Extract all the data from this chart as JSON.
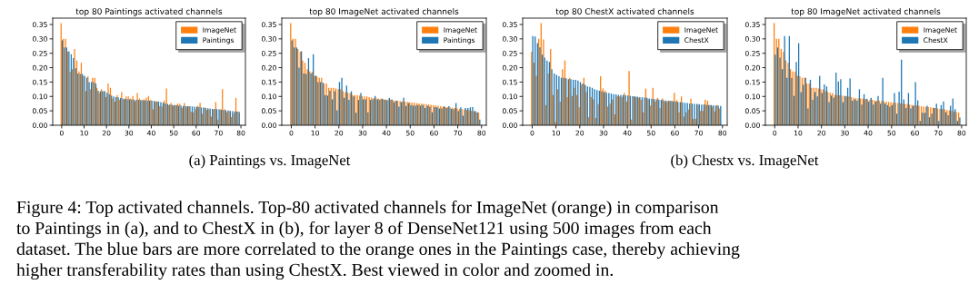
{
  "chart_data": [
    {
      "type": "bar",
      "title": "top 80 Paintings activated channels",
      "x": [
        0,
        1,
        2,
        3,
        4,
        5,
        6,
        7,
        8,
        9,
        10,
        11,
        12,
        13,
        14,
        15,
        16,
        17,
        18,
        19,
        20,
        21,
        22,
        23,
        24,
        25,
        26,
        27,
        28,
        29,
        30,
        31,
        32,
        33,
        34,
        35,
        36,
        37,
        38,
        39,
        40,
        41,
        42,
        43,
        44,
        45,
        46,
        47,
        48,
        49,
        50,
        51,
        52,
        53,
        54,
        55,
        56,
        57,
        58,
        59,
        60,
        61,
        62,
        63,
        64,
        65,
        66,
        67,
        68,
        69,
        70,
        71,
        72,
        73,
        74,
        75,
        76,
        77,
        78,
        79
      ],
      "series": [
        {
          "name": "ImageNet",
          "color": "#ff7f0e",
          "values": [
            0.355,
            0.3,
            0.3,
            0.255,
            0.185,
            0.195,
            0.265,
            0.225,
            0.187,
            0.217,
            0.17,
            0.118,
            0.17,
            0.125,
            0.165,
            0.165,
            0.13,
            0.112,
            0.125,
            0.118,
            0.098,
            0.145,
            0.13,
            0.093,
            0.082,
            0.105,
            0.088,
            0.115,
            0.09,
            0.1,
            0.1,
            0.093,
            0.102,
            0.083,
            0.112,
            0.093,
            0.088,
            0.09,
            0.096,
            0.102,
            0.088,
            0.055,
            0.083,
            0.083,
            0.066,
            0.065,
            0.086,
            0.128,
            0.07,
            0.077,
            0.068,
            0.07,
            0.075,
            0.075,
            0.06,
            0.077,
            0.065,
            0.066,
            0.047,
            0.045,
            0.055,
            0.068,
            0.078,
            0.04,
            0.062,
            0.053,
            0.055,
            0.03,
            0.055,
            0.08,
            0.02,
            0.055,
            0.125,
            0.055,
            0.045,
            0.05,
            0.028,
            0.04,
            0.095,
            0.048
          ]
        },
        {
          "name": "Paintings",
          "color": "#1f77b4",
          "values": [
            0.295,
            0.27,
            0.27,
            0.257,
            0.247,
            0.233,
            0.198,
            0.18,
            0.178,
            0.178,
            0.172,
            0.165,
            0.15,
            0.15,
            0.15,
            0.145,
            0.12,
            0.118,
            0.118,
            0.118,
            0.113,
            0.108,
            0.103,
            0.1,
            0.098,
            0.097,
            0.095,
            0.093,
            0.092,
            0.091,
            0.09,
            0.089,
            0.089,
            0.088,
            0.088,
            0.087,
            0.087,
            0.086,
            0.086,
            0.085,
            0.085,
            0.084,
            0.083,
            0.082,
            0.08,
            0.078,
            0.076,
            0.074,
            0.072,
            0.071,
            0.07,
            0.069,
            0.068,
            0.068,
            0.067,
            0.067,
            0.066,
            0.066,
            0.065,
            0.065,
            0.064,
            0.063,
            0.062,
            0.061,
            0.06,
            0.059,
            0.058,
            0.057,
            0.057,
            0.056,
            0.055,
            0.054,
            0.053,
            0.052,
            0.051,
            0.05,
            0.049,
            0.048,
            0.047,
            0.046
          ]
        }
      ],
      "xlim": [
        -4,
        82
      ],
      "ylim": [
        0,
        0.372
      ],
      "xticks": [
        0,
        10,
        20,
        30,
        40,
        50,
        60,
        70,
        80
      ],
      "yticks": [
        {
          "value": 0,
          "label": "0.00"
        },
        {
          "value": 0.05,
          "label": "0.05"
        },
        {
          "value": 0.1,
          "label": "0.10"
        },
        {
          "value": 0.15,
          "label": "0.15"
        },
        {
          "value": 0.2,
          "label": "0.20"
        },
        {
          "value": 0.25,
          "label": "0.25"
        },
        {
          "value": 0.3,
          "label": "0.30"
        },
        {
          "value": 0.35,
          "label": "0.35"
        }
      ],
      "legend": "top right",
      "annotations": [
        "(a) Paintings vs. ImageNet",
        "Figure 4: Top activated channels. Top-80 activated channels for ImageNet (orange) in comparison",
        "to Paintings in (a), and to ChestX in (b), for layer 8 of DenseNet121 using 500 images from each",
        "dataset. The blue bars are more correlated to the orange ones in the Paintings case, thereby achieving",
        "higher transferability rates than using ChestX. Best viewed in color and zoomed in."
      ]
    },
    {
      "type": "bar",
      "title": "top 80 ImageNet activated channels",
      "x": [
        0,
        1,
        2,
        3,
        4,
        5,
        6,
        7,
        8,
        9,
        10,
        11,
        12,
        13,
        14,
        15,
        16,
        17,
        18,
        19,
        20,
        21,
        22,
        23,
        24,
        25,
        26,
        27,
        28,
        29,
        30,
        31,
        32,
        33,
        34,
        35,
        36,
        37,
        38,
        39,
        40,
        41,
        42,
        43,
        44,
        45,
        46,
        47,
        48,
        49,
        50,
        51,
        52,
        53,
        54,
        55,
        56,
        57,
        58,
        59,
        60,
        61,
        62,
        63,
        64,
        65,
        66,
        67,
        68,
        69,
        70,
        71,
        72,
        73,
        74,
        75,
        76,
        77,
        78,
        79
      ],
      "series": [
        {
          "name": "ImageNet",
          "color": "#ff7f0e",
          "values": [
            0.355,
            0.3,
            0.3,
            0.265,
            0.255,
            0.225,
            0.217,
            0.195,
            0.187,
            0.185,
            0.172,
            0.17,
            0.165,
            0.165,
            0.145,
            0.145,
            0.13,
            0.13,
            0.13,
            0.128,
            0.125,
            0.125,
            0.118,
            0.115,
            0.113,
            0.112,
            0.105,
            0.105,
            0.104,
            0.103,
            0.102,
            0.1,
            0.1,
            0.098,
            0.096,
            0.094,
            0.093,
            0.093,
            0.092,
            0.09,
            0.09,
            0.089,
            0.088,
            0.087,
            0.086,
            0.085,
            0.084,
            0.083,
            0.082,
            0.081,
            0.08,
            0.079,
            0.078,
            0.077,
            0.076,
            0.075,
            0.074,
            0.073,
            0.072,
            0.071,
            0.07,
            0.069,
            0.068,
            0.066,
            0.065,
            0.064,
            0.063,
            0.062,
            0.061,
            0.06,
            0.058,
            0.057,
            0.056,
            0.055,
            0.053,
            0.052,
            0.05,
            0.048,
            0.046,
            0.044
          ]
        },
        {
          "name": "Paintings",
          "color": "#1f77b4",
          "values": [
            0.295,
            0.27,
            0.27,
            0.2,
            0.257,
            0.18,
            0.178,
            0.233,
            0.18,
            0.247,
            0.172,
            0.15,
            0.15,
            0.148,
            0.105,
            0.103,
            0.12,
            0.09,
            0.118,
            0.052,
            0.15,
            0.165,
            0.095,
            0.138,
            0.088,
            0.118,
            0.1,
            0.043,
            0.088,
            0.112,
            0.09,
            0.09,
            0.045,
            0.088,
            0.09,
            0.102,
            0.09,
            0.088,
            0.092,
            0.088,
            0.087,
            0.095,
            0.09,
            0.08,
            0.085,
            0.065,
            0.08,
            0.095,
            0.067,
            0.077,
            0.07,
            0.068,
            0.068,
            0.07,
            0.068,
            0.07,
            0.06,
            0.068,
            0.065,
            0.045,
            0.063,
            0.062,
            0.058,
            0.058,
            0.065,
            0.06,
            0.066,
            0.057,
            0.055,
            0.077,
            0.05,
            0.062,
            0.033,
            0.06,
            0.06,
            0.062,
            0.063,
            0.05,
            0.045,
            0.02
          ]
        }
      ],
      "xlim": [
        -4,
        82
      ],
      "ylim": [
        0,
        0.372
      ],
      "xticks": [
        0,
        10,
        20,
        30,
        40,
        50,
        60,
        70,
        80
      ],
      "yticks": [
        {
          "value": 0,
          "label": "0.00"
        },
        {
          "value": 0.05,
          "label": "0.05"
        },
        {
          "value": 0.1,
          "label": "0.10"
        },
        {
          "value": 0.15,
          "label": "0.15"
        },
        {
          "value": 0.2,
          "label": "0.20"
        },
        {
          "value": 0.25,
          "label": "0.25"
        },
        {
          "value": 0.3,
          "label": "0.30"
        },
        {
          "value": 0.35,
          "label": "0.35"
        }
      ],
      "legend": "top right"
    },
    {
      "type": "bar",
      "title": "top 80 ChestX activated channels",
      "x": [
        0,
        1,
        2,
        3,
        4,
        5,
        6,
        7,
        8,
        9,
        10,
        11,
        12,
        13,
        14,
        15,
        16,
        17,
        18,
        19,
        20,
        21,
        22,
        23,
        24,
        25,
        26,
        27,
        28,
        29,
        30,
        31,
        32,
        33,
        34,
        35,
        36,
        37,
        38,
        39,
        40,
        41,
        42,
        43,
        44,
        45,
        46,
        47,
        48,
        49,
        50,
        51,
        52,
        53,
        54,
        55,
        56,
        57,
        58,
        59,
        60,
        61,
        62,
        63,
        64,
        65,
        66,
        67,
        68,
        69,
        70,
        71,
        72,
        73,
        74,
        75,
        76,
        77,
        78,
        79
      ],
      "series": [
        {
          "name": "ImageNet",
          "color": "#ff7f0e",
          "values": [
            0.255,
            0.217,
            0.172,
            0.3,
            0.355,
            0.298,
            0.07,
            0.18,
            0.265,
            0.105,
            0.012,
            0.125,
            0.082,
            0.195,
            0.225,
            0.098,
            0.165,
            0.102,
            0.13,
            0.105,
            0.062,
            0.14,
            0.165,
            0.115,
            0.028,
            0.098,
            0.09,
            0.025,
            0.073,
            0.17,
            0.128,
            0.12,
            0.065,
            0.075,
            0.09,
            0.038,
            0.1,
            0.1,
            0.098,
            0.112,
            0.082,
            0.188,
            0.02,
            0.1,
            0.098,
            0.095,
            0.088,
            0.045,
            0.127,
            0.09,
            0.068,
            0.13,
            0.082,
            0.095,
            0.06,
            0.093,
            0.083,
            0.08,
            0.085,
            0.085,
            0.113,
            0.087,
            0.045,
            0.1,
            0.03,
            0.045,
            0.055,
            0.092,
            0.022,
            0.022,
            0.072,
            0.05,
            0.05,
            0.088,
            0.085,
            0.07,
            0.065,
            0.048,
            0.07,
            0.058
          ]
        },
        {
          "name": "ChestX",
          "color": "#1f77b4",
          "values": [
            0.31,
            0.308,
            0.285,
            0.27,
            0.245,
            0.235,
            0.225,
            0.22,
            0.195,
            0.18,
            0.175,
            0.17,
            0.165,
            0.165,
            0.163,
            0.16,
            0.16,
            0.158,
            0.158,
            0.155,
            0.15,
            0.145,
            0.14,
            0.135,
            0.133,
            0.13,
            0.125,
            0.122,
            0.12,
            0.118,
            0.115,
            0.113,
            0.112,
            0.11,
            0.108,
            0.107,
            0.106,
            0.105,
            0.105,
            0.104,
            0.103,
            0.102,
            0.101,
            0.1,
            0.099,
            0.098,
            0.097,
            0.096,
            0.095,
            0.093,
            0.092,
            0.091,
            0.09,
            0.089,
            0.088,
            0.087,
            0.086,
            0.085,
            0.084,
            0.083,
            0.082,
            0.081,
            0.08,
            0.079,
            0.078,
            0.077,
            0.076,
            0.075,
            0.074,
            0.074,
            0.073,
            0.072,
            0.072,
            0.071,
            0.07,
            0.07,
            0.069,
            0.068,
            0.068,
            0.067
          ]
        }
      ],
      "xlim": [
        -4,
        82
      ],
      "ylim": [
        0,
        0.372
      ],
      "xticks": [
        0,
        10,
        20,
        30,
        40,
        50,
        60,
        70,
        80
      ],
      "yticks": [
        {
          "value": 0,
          "label": "0.00"
        },
        {
          "value": 0.05,
          "label": "0.05"
        },
        {
          "value": 0.1,
          "label": "0.10"
        },
        {
          "value": 0.15,
          "label": "0.15"
        },
        {
          "value": 0.2,
          "label": "0.20"
        },
        {
          "value": 0.25,
          "label": "0.25"
        },
        {
          "value": 0.3,
          "label": "0.30"
        },
        {
          "value": 0.35,
          "label": "0.35"
        }
      ],
      "legend": "top right",
      "annotations": [
        "(b) Chestx vs. ImageNet"
      ]
    },
    {
      "type": "bar",
      "title": "top 80 ImageNet activated channels",
      "x": [
        0,
        1,
        2,
        3,
        4,
        5,
        6,
        7,
        8,
        9,
        10,
        11,
        12,
        13,
        14,
        15,
        16,
        17,
        18,
        19,
        20,
        21,
        22,
        23,
        24,
        25,
        26,
        27,
        28,
        29,
        30,
        31,
        32,
        33,
        34,
        35,
        36,
        37,
        38,
        39,
        40,
        41,
        42,
        43,
        44,
        45,
        46,
        47,
        48,
        49,
        50,
        51,
        52,
        53,
        54,
        55,
        56,
        57,
        58,
        59,
        60,
        61,
        62,
        63,
        64,
        65,
        66,
        67,
        68,
        69,
        70,
        71,
        72,
        73,
        74,
        75,
        76,
        77,
        78,
        79
      ],
      "series": [
        {
          "name": "ImageNet",
          "color": "#ff7f0e",
          "values": [
            0.355,
            0.3,
            0.3,
            0.265,
            0.255,
            0.225,
            0.217,
            0.195,
            0.187,
            0.185,
            0.172,
            0.17,
            0.165,
            0.165,
            0.145,
            0.145,
            0.13,
            0.13,
            0.13,
            0.128,
            0.125,
            0.125,
            0.118,
            0.115,
            0.113,
            0.112,
            0.105,
            0.105,
            0.104,
            0.103,
            0.102,
            0.1,
            0.1,
            0.098,
            0.096,
            0.094,
            0.093,
            0.093,
            0.092,
            0.09,
            0.09,
            0.089,
            0.088,
            0.087,
            0.086,
            0.085,
            0.084,
            0.083,
            0.082,
            0.081,
            0.08,
            0.079,
            0.078,
            0.077,
            0.076,
            0.075,
            0.074,
            0.073,
            0.072,
            0.071,
            0.07,
            0.069,
            0.068,
            0.066,
            0.065,
            0.064,
            0.063,
            0.062,
            0.061,
            0.06,
            0.058,
            0.057,
            0.056,
            0.055,
            0.053,
            0.052,
            0.05,
            0.048,
            0.046,
            0.044
          ]
        },
        {
          "name": "ChestX",
          "color": "#1f77b4",
          "values": [
            0.245,
            0.27,
            0.235,
            0.195,
            0.31,
            0.165,
            0.31,
            0.165,
            0.102,
            0.22,
            0.285,
            0.115,
            0.14,
            0.165,
            0.058,
            0.158,
            0.088,
            0.115,
            0.1,
            0.172,
            0.112,
            0.142,
            0.135,
            0.08,
            0.103,
            0.095,
            0.183,
            0.152,
            0.16,
            0.08,
            0.102,
            0.13,
            0.162,
            0.085,
            0.09,
            0.085,
            0.125,
            0.072,
            0.108,
            0.092,
            0.082,
            0.095,
            0.072,
            0.082,
            0.102,
            0.075,
            0.165,
            0.075,
            0.07,
            0.065,
            0.07,
            0.112,
            0.04,
            0.117,
            0.228,
            0.09,
            0.06,
            0.112,
            0.058,
            0.067,
            0.15,
            0.087,
            0.015,
            0.043,
            0.043,
            0.068,
            0.028,
            0.04,
            0.06,
            0.075,
            0.015,
            0.07,
            0.083,
            0.045,
            0.035,
            0.068,
            0.093,
            0.056,
            0.015,
            0.027
          ]
        }
      ],
      "xlim": [
        -4,
        82
      ],
      "ylim": [
        0,
        0.372
      ],
      "xticks": [
        0,
        10,
        20,
        30,
        40,
        50,
        60,
        70,
        80
      ],
      "yticks": [
        {
          "value": 0,
          "label": "0.00"
        },
        {
          "value": 0.05,
          "label": "0.05"
        },
        {
          "value": 0.1,
          "label": "0.10"
        },
        {
          "value": 0.15,
          "label": "0.15"
        },
        {
          "value": 0.2,
          "label": "0.20"
        },
        {
          "value": 0.25,
          "label": "0.25"
        },
        {
          "value": 0.3,
          "label": "0.30"
        },
        {
          "value": 0.35,
          "label": "0.35"
        }
      ],
      "legend": "top right"
    }
  ]
}
